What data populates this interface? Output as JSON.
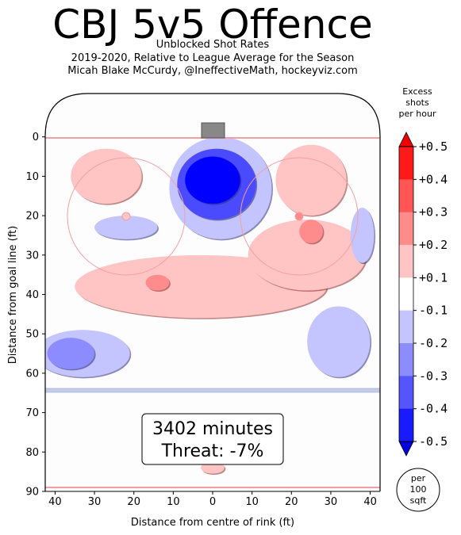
{
  "header": {
    "title": "CBJ 5v5 Offence",
    "subtitle1": "Unblocked Shot Rates",
    "subtitle2": "2019-2020, Relative to League Average for the Season",
    "subtitle3": "Micah Blake McCurdy, @IneffectiveMath, hockeyviz.com"
  },
  "stats": {
    "minutes": "3402 minutes",
    "threat": "Threat: -7%"
  },
  "legend": {
    "title_lines": [
      "Excess",
      "shots",
      "per hour"
    ],
    "unit_lines": [
      "per",
      "100",
      "sqft"
    ]
  },
  "colors": {
    "red_light": "#ffc4c4",
    "red_mid": "#ff8c8c",
    "red_strong": "#ff4a4a",
    "blue_light": "#c4c4ff",
    "blue_mid": "#8c8cff",
    "blue_strong": "#4a4aff",
    "blue_core": "#0000ff"
  },
  "chart_data": {
    "type": "heatmap",
    "xlabel": "Distance from centre of rink (ft)",
    "ylabel": "Distance from goal line (ft)",
    "xlim": [
      42.5,
      -42.5
    ],
    "ylim": [
      90,
      -11
    ],
    "x_ticks": [
      "40",
      "30",
      "20",
      "10",
      "0",
      "10",
      "20",
      "30",
      "40"
    ],
    "x_tick_values": [
      -40,
      -30,
      -20,
      -10,
      0,
      10,
      20,
      30,
      40
    ],
    "y_ticks": [
      "0",
      "10",
      "20",
      "30",
      "40",
      "50",
      "60",
      "70",
      "80",
      "90"
    ],
    "y_tick_values": [
      0,
      10,
      20,
      30,
      40,
      50,
      60,
      70,
      80,
      90
    ],
    "colorbar": {
      "labels": [
        "+0.5",
        "+0.4",
        "+0.3",
        "+0.2",
        "+0.1",
        "-0.1",
        "-0.2",
        "-0.3",
        "-0.4",
        "-0.5"
      ],
      "values": [
        0.5,
        0.4,
        0.3,
        0.2,
        0.1,
        -0.1,
        -0.2,
        -0.3,
        -0.4,
        -0.5
      ],
      "band_colors": [
        "#ff1a1a",
        "#ff5555",
        "#ff8c8c",
        "#ffc4c4",
        "#ffffff",
        "#c4c4ff",
        "#8c8cff",
        "#5555ff",
        "#1a1aff"
      ]
    },
    "regions": [
      {
        "name": "slot-core",
        "x": 0,
        "y": 11,
        "rx": 7,
        "ry": 6,
        "value": -0.5
      },
      {
        "name": "slot-ring",
        "x": 1,
        "y": 12,
        "rx": 10,
        "ry": 9,
        "value": -0.3
      },
      {
        "name": "slot-outer",
        "x": 2,
        "y": 13,
        "rx": 13,
        "ry": 13,
        "value": -0.1
      },
      {
        "name": "left-faceoff",
        "x": -27,
        "y": 10,
        "rx": 9,
        "ry": 7,
        "value": 0.1
      },
      {
        "name": "right-wall-upper",
        "x": 25,
        "y": 11,
        "rx": 9,
        "ry": 9,
        "value": 0.1
      },
      {
        "name": "left-circle-blue",
        "x": -22,
        "y": 23,
        "rx": 8,
        "ry": 3,
        "value": -0.1
      },
      {
        "name": "high-slot-band",
        "x": -3,
        "y": 38,
        "rx": 32,
        "ry": 8,
        "value": 0.1
      },
      {
        "name": "right-side-band",
        "x": 24,
        "y": 30,
        "rx": 15,
        "ry": 9,
        "value": 0.1
      },
      {
        "name": "right-circle-hot",
        "x": 25,
        "y": 24,
        "rx": 3,
        "ry": 3,
        "value": 0.2
      },
      {
        "name": "left-point-hot",
        "x": -14,
        "y": 37,
        "rx": 3,
        "ry": 2,
        "value": 0.2
      },
      {
        "name": "right-boards-blue",
        "x": 38,
        "y": 25,
        "rx": 3,
        "ry": 7,
        "value": -0.1
      },
      {
        "name": "left-blueline",
        "x": -33,
        "y": 55,
        "rx": 12,
        "ry": 6,
        "value": -0.1
      },
      {
        "name": "left-blueline-core",
        "x": -36,
        "y": 55,
        "rx": 6,
        "ry": 4,
        "value": -0.2
      },
      {
        "name": "right-blueline",
        "x": 32,
        "y": 52,
        "rx": 8,
        "ry": 9,
        "value": -0.1
      },
      {
        "name": "low-point",
        "x": 0,
        "y": 84,
        "rx": 3,
        "ry": 1.5,
        "value": 0.1
      }
    ]
  }
}
